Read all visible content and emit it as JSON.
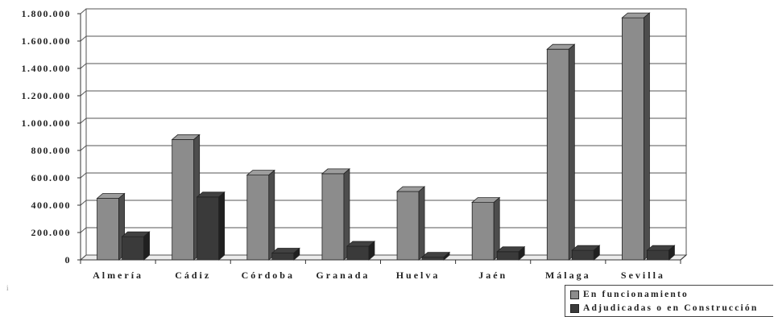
{
  "chart_data": {
    "type": "bar",
    "categories": [
      "Almería",
      "Cádiz",
      "Córdoba",
      "Granada",
      "Huelva",
      "Jaén",
      "Málaga",
      "Sevilla"
    ],
    "series": [
      {
        "name": "En funcionamiento",
        "color": "#8c8c8c",
        "values": [
          450000,
          880000,
          620000,
          630000,
          500000,
          420000,
          1540000,
          1770000
        ]
      },
      {
        "name": "Adjudicadas o en Construcción",
        "color": "#3a3a3a",
        "values": [
          170000,
          460000,
          50000,
          100000,
          20000,
          60000,
          70000,
          70000
        ]
      }
    ],
    "ylim": [
      0,
      1800000
    ],
    "yticks": [
      0,
      200000,
      400000,
      600000,
      800000,
      1000000,
      1200000,
      1400000,
      1600000,
      1800000
    ],
    "ytick_labels": [
      "0",
      "200.000",
      "400.000",
      "600.000",
      "800.000",
      "1.000.000",
      "1.200.000",
      "1.400.000",
      "1.600.000",
      "1.800.000"
    ],
    "grid": true,
    "legend_position": "bottom-right",
    "title": "",
    "xlabel": "",
    "ylabel": ""
  },
  "legend": {
    "items": [
      {
        "label": "En funcionamiento",
        "color": "#8c8c8c"
      },
      {
        "label": "Adjudicadas o en Construcción",
        "color": "#3a3a3a"
      }
    ]
  },
  "stray_mark": "i"
}
